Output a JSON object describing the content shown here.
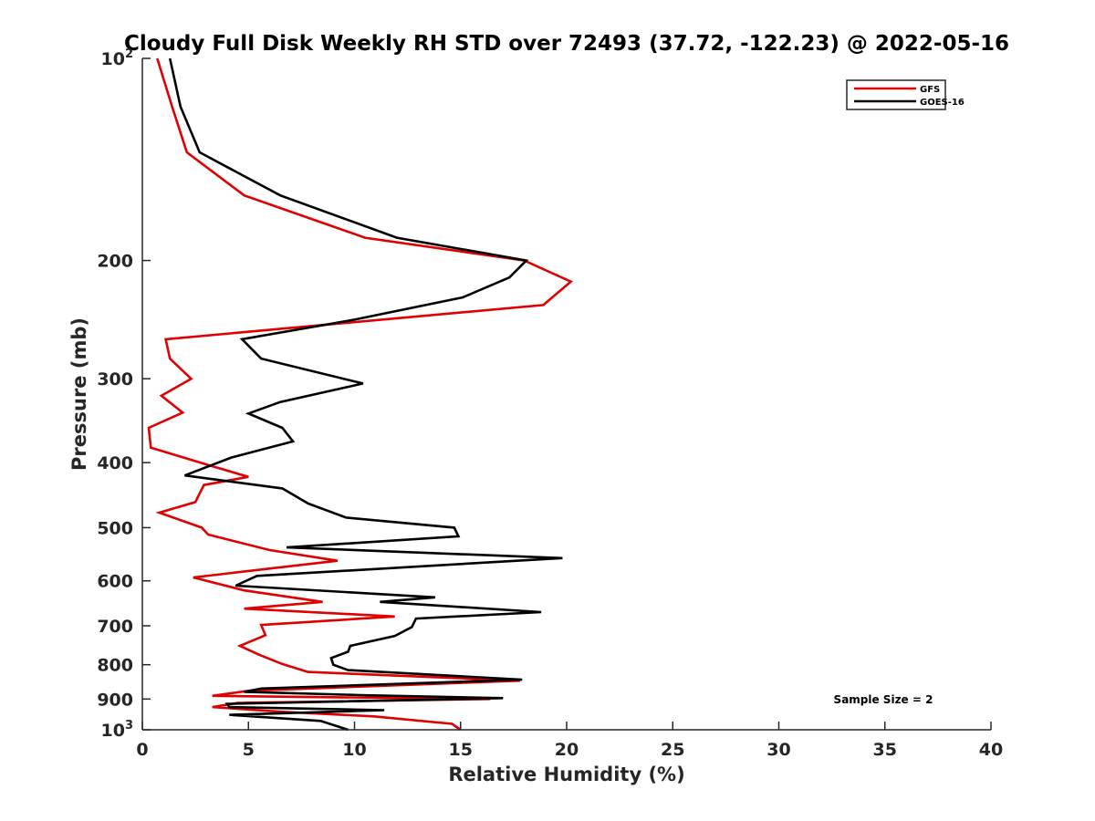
{
  "chart_data": {
    "type": "line",
    "title": "Cloudy Full Disk Weekly RH STD over 72493 (37.72, -122.23) @ 2022-05-16",
    "xlabel": "Relative Humidity (%)",
    "ylabel": "Pressure (mb)",
    "xlim": [
      0,
      40
    ],
    "ylim": [
      100,
      1000
    ],
    "yscale": "log",
    "y_reversed": true,
    "grid": false,
    "legend_position": "top-right",
    "x_ticks": [
      "0",
      "5",
      "10",
      "15",
      "20",
      "25",
      "30",
      "35",
      "40"
    ],
    "y_ticks": [
      {
        "value": 100,
        "label": "10",
        "sup": "2"
      },
      {
        "value": 200,
        "label": "200",
        "sup": ""
      },
      {
        "value": 300,
        "label": "300",
        "sup": ""
      },
      {
        "value": 400,
        "label": "400",
        "sup": ""
      },
      {
        "value": 500,
        "label": "500",
        "sup": ""
      },
      {
        "value": 600,
        "label": "600",
        "sup": ""
      },
      {
        "value": 700,
        "label": "700",
        "sup": ""
      },
      {
        "value": 800,
        "label": "800",
        "sup": ""
      },
      {
        "value": 900,
        "label": "900",
        "sup": ""
      },
      {
        "value": 1000,
        "label": "10",
        "sup": "3"
      }
    ],
    "annotation": "Sample Size = 2",
    "series": [
      {
        "name": "GFS",
        "color": "#e00000",
        "points": [
          [
            0.7,
            100
          ],
          [
            1.4,
            118
          ],
          [
            2.1,
            138
          ],
          [
            4.8,
            160
          ],
          [
            10.5,
            185
          ],
          [
            18.0,
            200
          ],
          [
            20.2,
            215
          ],
          [
            18.9,
            233
          ],
          [
            1.1,
            262
          ],
          [
            1.3,
            280
          ],
          [
            2.3,
            300
          ],
          [
            0.9,
            318
          ],
          [
            1.9,
            337
          ],
          [
            0.3,
            355
          ],
          [
            0.4,
            380
          ],
          [
            3.3,
            405
          ],
          [
            5.0,
            420
          ],
          [
            2.9,
            432
          ],
          [
            2.5,
            458
          ],
          [
            0.8,
            475
          ],
          [
            2.8,
            500
          ],
          [
            3.1,
            512
          ],
          [
            6.0,
            540
          ],
          [
            9.2,
            560
          ],
          [
            2.4,
            593
          ],
          [
            4.8,
            620
          ],
          [
            8.5,
            645
          ],
          [
            4.8,
            660
          ],
          [
            11.9,
            678
          ],
          [
            5.6,
            698
          ],
          [
            5.8,
            723
          ],
          [
            4.6,
            750
          ],
          [
            5.5,
            773
          ],
          [
            6.6,
            798
          ],
          [
            7.8,
            820
          ],
          [
            17.8,
            845
          ],
          [
            5.0,
            875
          ],
          [
            3.3,
            890
          ],
          [
            16.4,
            900
          ],
          [
            4.5,
            912
          ],
          [
            3.3,
            925
          ],
          [
            6.5,
            940
          ],
          [
            10.9,
            955
          ],
          [
            14.6,
            980
          ],
          [
            15.0,
            1000
          ]
        ]
      },
      {
        "name": "GOES-16",
        "color": "#000000",
        "points": [
          [
            1.3,
            100
          ],
          [
            1.8,
            118
          ],
          [
            2.7,
            138
          ],
          [
            6.5,
            160
          ],
          [
            12.0,
            185
          ],
          [
            18.1,
            200
          ],
          [
            17.3,
            212
          ],
          [
            15.1,
            227
          ],
          [
            10.0,
            245
          ],
          [
            4.7,
            262
          ],
          [
            5.6,
            280
          ],
          [
            10.4,
            305
          ],
          [
            6.5,
            325
          ],
          [
            5.0,
            338
          ],
          [
            6.6,
            355
          ],
          [
            7.1,
            372
          ],
          [
            4.2,
            393
          ],
          [
            2.0,
            418
          ],
          [
            6.6,
            437
          ],
          [
            7.8,
            460
          ],
          [
            9.6,
            483
          ],
          [
            14.7,
            500
          ],
          [
            14.9,
            515
          ],
          [
            6.8,
            535
          ],
          [
            19.8,
            555
          ],
          [
            5.4,
            590
          ],
          [
            4.4,
            610
          ],
          [
            13.8,
            635
          ],
          [
            11.2,
            645
          ],
          [
            18.8,
            668
          ],
          [
            12.9,
            683
          ],
          [
            12.7,
            703
          ],
          [
            11.9,
            725
          ],
          [
            9.8,
            750
          ],
          [
            9.7,
            765
          ],
          [
            8.9,
            782
          ],
          [
            9.0,
            800
          ],
          [
            9.7,
            815
          ],
          [
            17.9,
            842
          ],
          [
            5.6,
            868
          ],
          [
            4.8,
            878
          ],
          [
            10.3,
            888
          ],
          [
            17.0,
            897
          ],
          [
            4.0,
            915
          ],
          [
            4.1,
            925
          ],
          [
            11.4,
            935
          ],
          [
            4.1,
            950
          ],
          [
            8.4,
            970
          ],
          [
            9.7,
            1000
          ]
        ]
      }
    ]
  }
}
